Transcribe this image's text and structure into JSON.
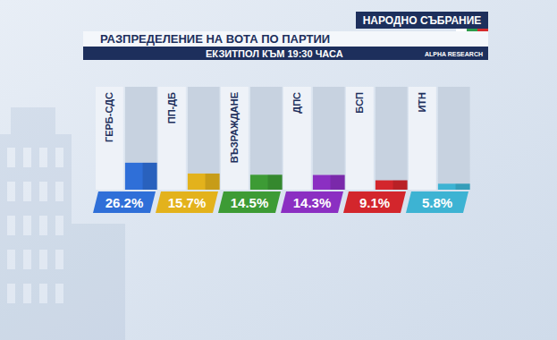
{
  "chart_data": {
    "type": "bar",
    "header": "НАРОДНО СЪБРАНИЕ",
    "title": "РАЗПРЕДЕЛЕНИЕ НА ВОТА ПО ПАРТИИ",
    "subtitle": "ЕКЗИТПОЛ КЪМ 19:30 ЧАСА",
    "logo": "ALPHA RESEARCH",
    "categories": [
      "ГЕРБ-СДС",
      "ПП-ДБ",
      "ВЪЗРАЖДАНЕ",
      "ДПС",
      "БСП",
      "ИТН"
    ],
    "values": [
      26.2,
      15.7,
      14.5,
      14.3,
      9.1,
      5.8
    ],
    "value_labels": [
      "26.2%",
      "15.7%",
      "14.5%",
      "14.3%",
      "9.1%",
      "5.8%"
    ],
    "colors": [
      "#2f6fd8",
      "#e3b21c",
      "#3d9b35",
      "#8b2fc2",
      "#d3262c",
      "#3db3d3"
    ],
    "ylim": [
      0,
      100
    ],
    "data_labels": true,
    "tick_labels": "x"
  }
}
